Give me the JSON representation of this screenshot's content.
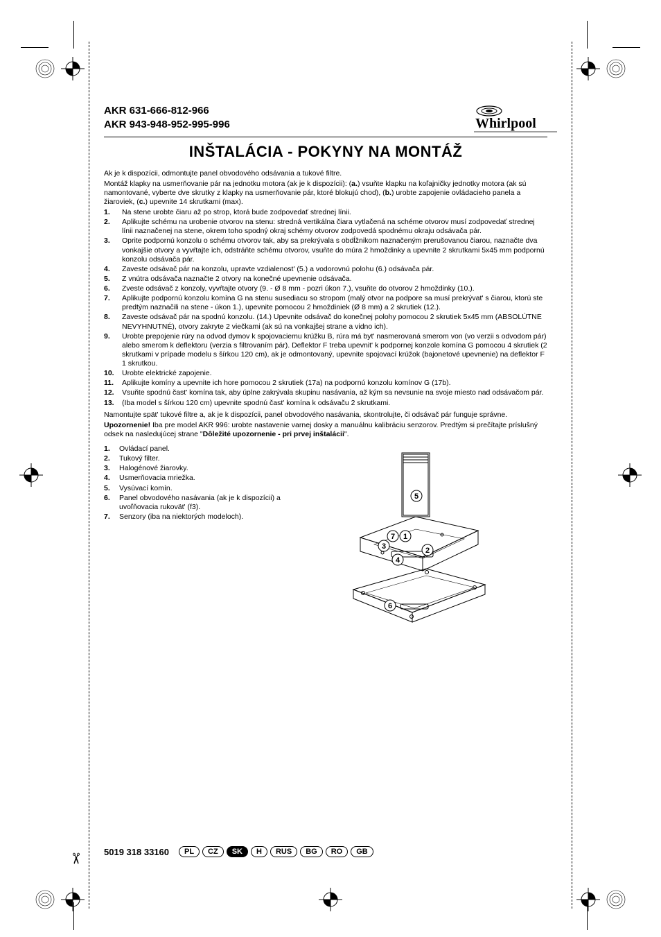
{
  "header": {
    "model_line_1": "AKR 631-666-812-966",
    "model_line_2": "AKR 943-948-952-995-996",
    "logo_text": "Whirlpool"
  },
  "title": "INŠTALÁCIA - POKYNY NA MONTÁŽ",
  "intro": {
    "p1": "Ak je k dispozícii, odmontujte panel obvodového odsávania a tukové filtre.",
    "p2_prefix": "Montáž klapky na usmerňovanie pár na jednotku motora (ak je k dispozícii): (",
    "p2_a": "a.",
    "p2_a_txt": ") vsuňte klapku na koľajničky jednotky motora (ak sú namontované, vyberte dve skrutky z klapky na usmerňovanie pár, ktoré blokujú chod), (",
    "p2_b": "b.",
    "p2_b_txt": ") urobte zapojenie ovládacieho panela a žiaroviek, (",
    "p2_c": "c.",
    "p2_c_txt": ") upevnite 14 skrutkami (max)."
  },
  "steps": [
    {
      "n": "1.",
      "t": "Na stene urobte čiaru až po strop, ktorá bude zodpovedať strednej línii."
    },
    {
      "n": "2.",
      "t": "Aplikujte schému na urobenie otvorov na stenu: stredná vertikálna čiara vytlačená na schéme otvorov musí zodpovedať strednej línii naznačenej na stene, okrem toho spodný okraj schémy otvorov zodpovedá spodnému okraju odsávača pár."
    },
    {
      "n": "3.",
      "t": "Oprite podpornú konzolu o schému otvorov tak, aby sa prekrývala s obdĺžnikom naznačeným prerušovanou čiarou, naznačte dva vonkajšie otvory a vyvŕtajte ich, odstráňte schému otvorov, vsuňte do múra 2 hmoždinky a upevnite 2  skrutkami 5x45 mm podpornú konzolu odsávača pár."
    },
    {
      "n": "4.",
      "t": "Zaveste odsávač pár na konzolu, upravte vzdialenost' (5.) a vodorovnú polohu (6.) odsávača pár."
    },
    {
      "n": "5.",
      "t": "Z vnútra odsávača naznačte 2 otvory na konečné upevnenie odsávača."
    },
    {
      "n": "6.",
      "t": "Zveste odsávač z konzoly, vyvŕtajte otvory (9. - Ø 8 mm - pozri úkon 7.), vsuňte do otvorov 2 hmoždinky (10.)."
    },
    {
      "n": "7.",
      "t": "Aplikujte podpornú konzolu komína G na stenu susediacu so stropom (malý otvor na podpore sa musí prekrývat' s čiarou, ktorú ste predtým naznačili na stene - úkon 1.), upevnite pomocou 2 hmoždiniek (Ø 8 mm) a 2 skrutiek (12.)."
    },
    {
      "n": "8.",
      "t": "Zaveste odsávač pár na spodnú konzolu. (14.) Upevnite odsávač do konečnej polohy pomocou 2 skrutiek 5x45 mm (ABSOLÚTNE NEVYHNUTNÉ), otvory zakryte 2 viečkami (ak sú na vonkajšej strane a vidno ich)."
    },
    {
      "n": "9.",
      "t": "Urobte prepojenie rúry na odvod dymov k spojovaciemu krúžku B, rúra má byt' nasmerovaná smerom von (vo verzii s odvodom pár) alebo smerom k deflektoru (verzia s filtrovaním pár). Deflektor F treba upevnit' k podpornej konzole komína G pomocou 4 skrutiek (2 skrutkami v prípade modelu s šírkou 120 cm), ak je odmontovaný, upevnite spojovací krúžok (bajonetové upevnenie) na deflektor F 1 skrutkou."
    },
    {
      "n": "10.",
      "t": "Urobte elektrické zapojenie."
    },
    {
      "n": "11.",
      "t": "Aplikujte komíny a upevnite ich hore pomocou 2 skrutiek (17a) na podpornú konzolu komínov G (17b)."
    },
    {
      "n": "12.",
      "t": "Vsuňte spodnú čast' komína tak, aby úplne zakrývala skupinu nasávania, až kým sa nevsunie na svoje miesto nad odsávačom pár."
    },
    {
      "n": "13.",
      "t": "(Iba model s šírkou 120 cm) upevnite spodnú čast' komína k odsávaču 2 skrutkami."
    }
  ],
  "after": {
    "p1": "Namontujte spät' tukové filtre a, ak je k dispozícii, panel obvodového nasávania, skontrolujte, či odsávač pár funguje správne.",
    "p2_bold": "Upozornenie!",
    "p2_rest": " Iba pre model AKR 996: urobte nastavenie varnej dosky a manuálnu kalibráciu senzorov. Predtým si prečítajte príslušný odsek na nasledujúcej strane \"",
    "p2_bold2": "Dôležité upozornenie - pri prvej inštalácii",
    "p2_end": "\"."
  },
  "legend": [
    {
      "n": "1.",
      "t": "Ovládací panel."
    },
    {
      "n": "2.",
      "t": "Tukový filter."
    },
    {
      "n": "3.",
      "t": "Halogénové žiarovky."
    },
    {
      "n": "4.",
      "t": "Usmerňovacia mriežka."
    },
    {
      "n": "5.",
      "t": "Vysúvací komín."
    },
    {
      "n": "6.",
      "t": "Panel obvodového nasávania (ak je k dispozícii) a uvoľňovacia rukovät' (f3)."
    },
    {
      "n": "7.",
      "t": "Senzory (iba na niektorých modeloch)."
    }
  ],
  "diagram_labels": [
    "1",
    "2",
    "3",
    "4",
    "5",
    "6",
    "7"
  ],
  "footer": {
    "doc_number": "5019 318 33160",
    "languages": [
      "PL",
      "CZ",
      "SK",
      "H",
      "RUS",
      "BG",
      "RO",
      "GB"
    ],
    "active_lang": "SK"
  },
  "colors": {
    "text": "#000000",
    "bg": "#ffffff"
  }
}
